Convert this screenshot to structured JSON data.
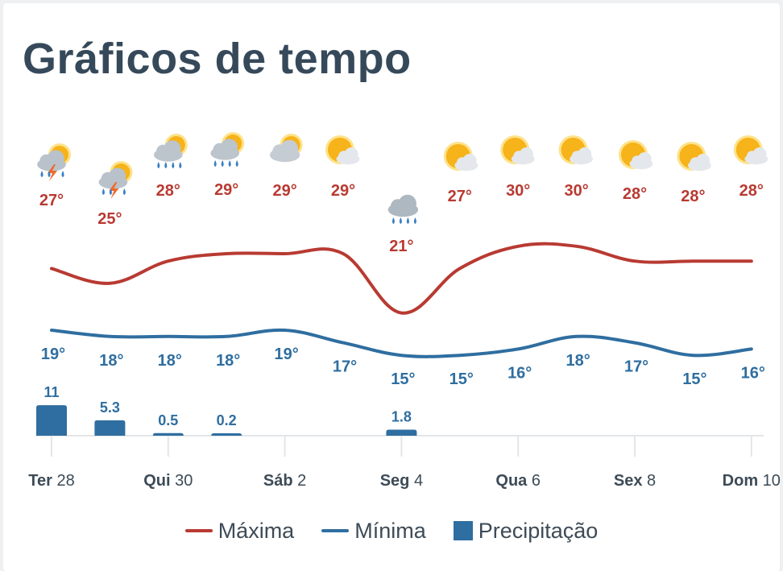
{
  "title": "Gráficos de tempo",
  "colors": {
    "max": "#b83a32",
    "min": "#2f6ea0",
    "precip": "#2f6ea0",
    "title": "#36495a",
    "axis": "#e3e6e9"
  },
  "legend": {
    "max": "Máxima",
    "min": "Mínima",
    "precip": "Precipitação"
  },
  "chart_data": {
    "type": "line",
    "x_ticks": [
      {
        "day": "Ter",
        "num": "28"
      },
      {
        "day": "Qui",
        "num": "30"
      },
      {
        "day": "Sáb",
        "num": "2"
      },
      {
        "day": "Seg",
        "num": "4"
      },
      {
        "day": "Qua",
        "num": "6"
      },
      {
        "day": "Sex",
        "num": "8"
      },
      {
        "day": "Dom",
        "num": "10"
      }
    ],
    "days": [
      {
        "icon": "thunderstorm-icon",
        "max": 27,
        "min": 19,
        "precip": 11
      },
      {
        "icon": "thunderstorm-icon",
        "max": 25,
        "min": 18,
        "precip": 5.3
      },
      {
        "icon": "rain-sun-icon",
        "max": 28,
        "min": 18,
        "precip": 0.5
      },
      {
        "icon": "rain-sun-icon",
        "max": 29,
        "min": 18,
        "precip": 0.2
      },
      {
        "icon": "cloudy-sun-icon",
        "max": 29,
        "min": 19,
        "precip": null
      },
      {
        "icon": "partly-sunny-icon",
        "max": 29,
        "min": 17,
        "precip": null
      },
      {
        "icon": "rain-cloud-icon",
        "max": 21,
        "min": 15,
        "precip": 1.8
      },
      {
        "icon": "partly-sunny-icon",
        "max": 27,
        "min": 15,
        "precip": null
      },
      {
        "icon": "partly-sunny-icon",
        "max": 30,
        "min": 16,
        "precip": null
      },
      {
        "icon": "partly-sunny-icon",
        "max": 30,
        "min": 18,
        "precip": null
      },
      {
        "icon": "partly-sunny-icon",
        "max": 28,
        "min": 17,
        "precip": null
      },
      {
        "icon": "partly-sunny-icon",
        "max": 28,
        "min": 15,
        "precip": null
      },
      {
        "icon": "partly-sunny-icon",
        "max": 28,
        "min": 16,
        "precip": null
      }
    ],
    "series": [
      {
        "name": "Máxima",
        "values": [
          27,
          25,
          28,
          29,
          29,
          29,
          21,
          27,
          30,
          30,
          28,
          28,
          28
        ]
      },
      {
        "name": "Mínima",
        "values": [
          19,
          18,
          18,
          18,
          19,
          17,
          15,
          15,
          16,
          18,
          17,
          15,
          16
        ]
      },
      {
        "name": "Precipitação",
        "values": [
          11,
          5.3,
          0.5,
          0.2,
          null,
          null,
          1.8,
          null,
          null,
          null,
          null,
          null,
          null
        ]
      }
    ],
    "temp_unit": "°",
    "legend_position": "bottom",
    "grid": false
  }
}
